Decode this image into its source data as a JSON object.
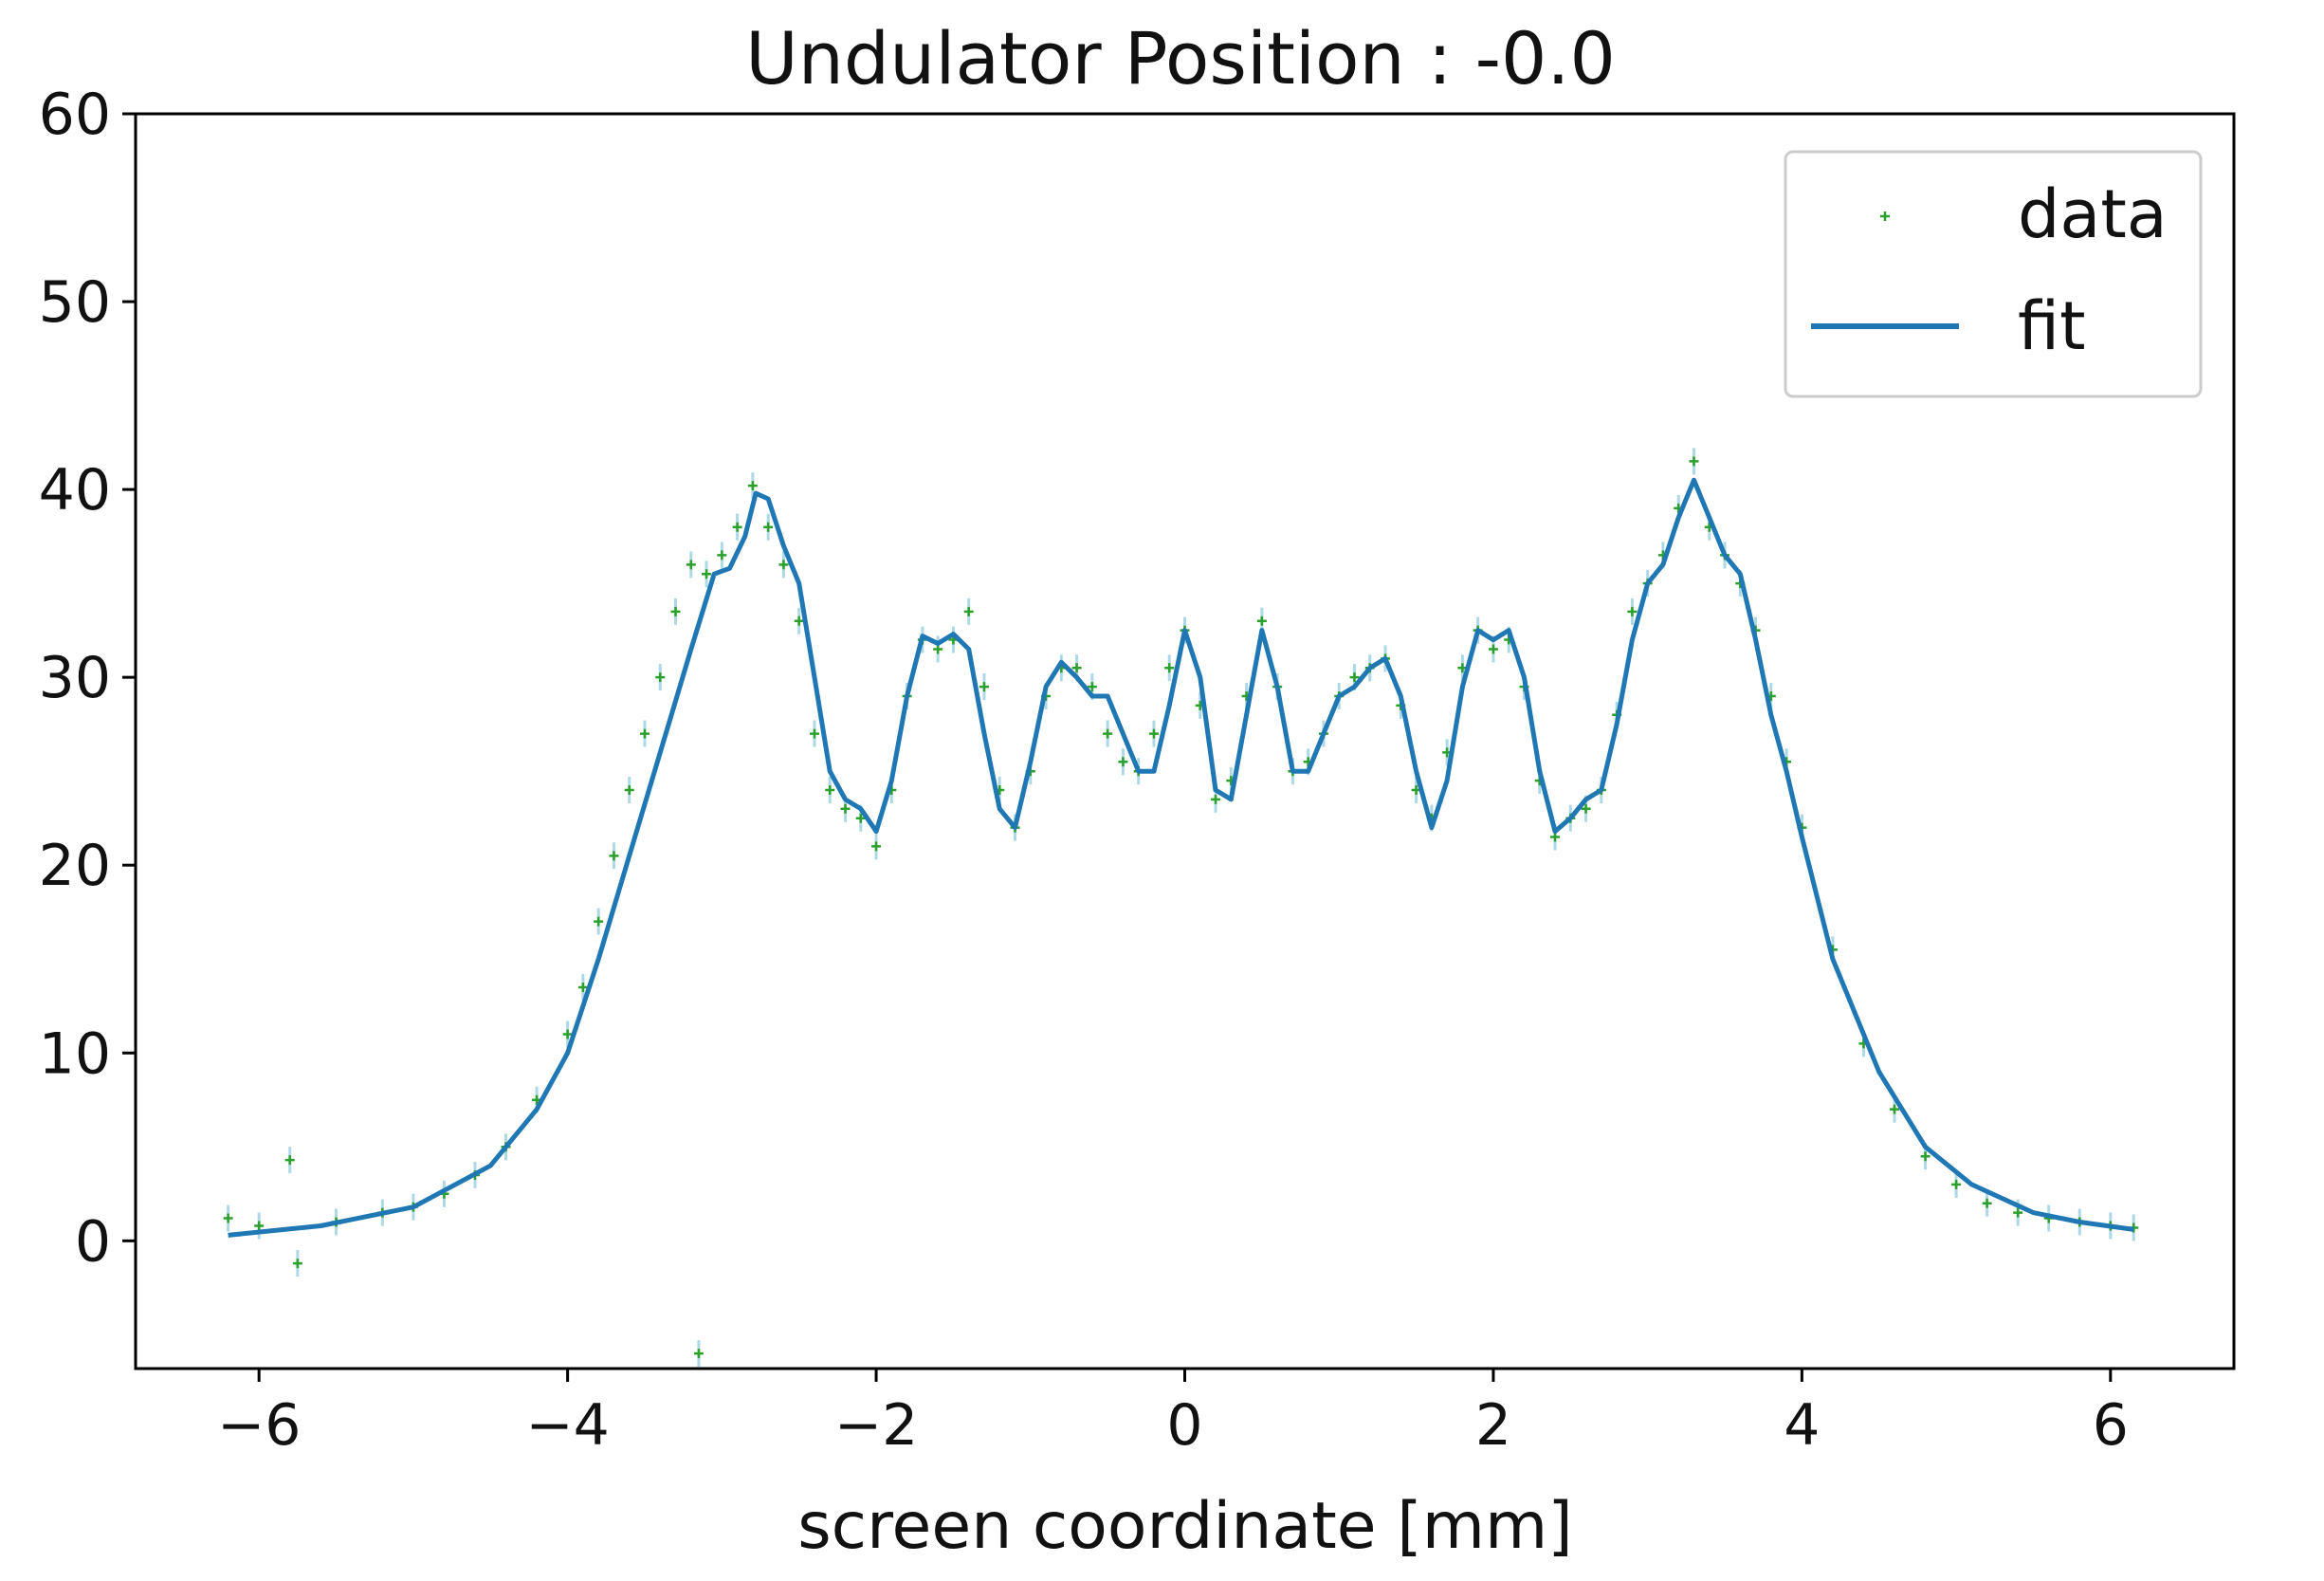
{
  "chart_data": {
    "type": "scatter",
    "title": "Undulator Position : -0.0",
    "xlabel": "screen coordinate [mm]",
    "ylabel": "",
    "xlim": [
      -6.8,
      6.8
    ],
    "ylim": [
      -6.8,
      60
    ],
    "xticks": [
      -6,
      -4,
      -2,
      0,
      2,
      4,
      6
    ],
    "xtick_labels": [
      "−6",
      "−4",
      "−2",
      "0",
      "2",
      "4",
      "6"
    ],
    "yticks": [
      0,
      10,
      20,
      30,
      40,
      50,
      60
    ],
    "ytick_labels": [
      "0",
      "10",
      "20",
      "30",
      "40",
      "50",
      "60"
    ],
    "grid": false,
    "legend_position": "top-right",
    "colors": {
      "data": "#2ca02c",
      "fit": "#1f77b4",
      "errorbar": "#add8e6"
    },
    "series": [
      {
        "name": "data",
        "kind": "scatter",
        "marker": "+",
        "x": [
          -6.2,
          -6.0,
          -5.8,
          -5.75,
          -5.5,
          -5.2,
          -5.0,
          -4.8,
          -4.6,
          -4.4,
          -4.2,
          -4.0,
          -3.9,
          -3.8,
          -3.7,
          -3.6,
          -3.5,
          -3.4,
          -3.3,
          -3.2,
          -3.15,
          -3.1,
          -3.0,
          -2.9,
          -2.8,
          -2.7,
          -2.6,
          -2.5,
          -2.4,
          -2.3,
          -2.2,
          -2.1,
          -2.0,
          -1.9,
          -1.8,
          -1.7,
          -1.6,
          -1.5,
          -1.4,
          -1.3,
          -1.2,
          -1.1,
          -1.0,
          -0.9,
          -0.8,
          -0.7,
          -0.6,
          -0.5,
          -0.4,
          -0.3,
          -0.2,
          -0.1,
          0.0,
          0.1,
          0.2,
          0.3,
          0.4,
          0.5,
          0.6,
          0.7,
          0.8,
          0.9,
          1.0,
          1.1,
          1.2,
          1.3,
          1.4,
          1.5,
          1.6,
          1.7,
          1.8,
          1.9,
          2.0,
          2.1,
          2.2,
          2.3,
          2.4,
          2.5,
          2.6,
          2.7,
          2.8,
          2.9,
          3.0,
          3.1,
          3.2,
          3.3,
          3.4,
          3.5,
          3.6,
          3.7,
          3.8,
          3.9,
          4.0,
          4.2,
          4.4,
          4.6,
          4.8,
          5.0,
          5.2,
          5.4,
          5.6,
          5.8,
          6.0,
          6.15
        ],
        "y": [
          1.2,
          0.8,
          4.3,
          -1.2,
          1.0,
          1.5,
          1.8,
          2.5,
          3.5,
          5.0,
          7.5,
          11.0,
          13.5,
          17.0,
          20.5,
          24.0,
          27.0,
          30.0,
          33.5,
          36.0,
          -6.0,
          35.5,
          36.5,
          38.0,
          40.2,
          38.0,
          36.0,
          33.0,
          27.0,
          24.0,
          23.0,
          22.5,
          21.0,
          24.0,
          29.0,
          32.0,
          31.5,
          32.0,
          33.5,
          29.5,
          24.0,
          22.0,
          25.0,
          29.0,
          30.5,
          30.5,
          29.5,
          27.0,
          25.5,
          25.0,
          27.0,
          30.5,
          32.5,
          28.5,
          23.5,
          24.5,
          29.0,
          33.0,
          29.5,
          25.0,
          25.5,
          27.0,
          29.0,
          30.0,
          30.5,
          31.0,
          28.5,
          24.0,
          22.5,
          26.0,
          30.5,
          32.5,
          31.5,
          32.0,
          29.5,
          24.5,
          21.5,
          22.5,
          23.0,
          24.0,
          28.0,
          33.5,
          35.0,
          36.5,
          39.0,
          41.5,
          38.0,
          36.5,
          35.0,
          32.5,
          29.0,
          25.5,
          22.0,
          15.5,
          10.5,
          7.0,
          4.5,
          3.0,
          2.0,
          1.5,
          1.2,
          1.0,
          0.8,
          0.7
        ]
      },
      {
        "name": "fit",
        "kind": "line",
        "x": [
          -6.2,
          -5.6,
          -5.0,
          -4.5,
          -4.2,
          -4.0,
          -3.8,
          -3.6,
          -3.4,
          -3.2,
          -3.05,
          -2.95,
          -2.85,
          -2.78,
          -2.7,
          -2.6,
          -2.5,
          -2.4,
          -2.3,
          -2.2,
          -2.1,
          -2.0,
          -1.9,
          -1.8,
          -1.7,
          -1.6,
          -1.5,
          -1.4,
          -1.3,
          -1.2,
          -1.1,
          -1.0,
          -0.9,
          -0.8,
          -0.7,
          -0.6,
          -0.5,
          -0.4,
          -0.3,
          -0.2,
          -0.1,
          0.0,
          0.1,
          0.2,
          0.3,
          0.4,
          0.5,
          0.6,
          0.7,
          0.8,
          0.9,
          1.0,
          1.1,
          1.2,
          1.3,
          1.4,
          1.5,
          1.6,
          1.7,
          1.8,
          1.9,
          2.0,
          2.1,
          2.2,
          2.3,
          2.4,
          2.5,
          2.6,
          2.7,
          2.8,
          2.9,
          3.0,
          3.1,
          3.2,
          3.3,
          3.4,
          3.5,
          3.6,
          3.7,
          3.8,
          3.9,
          4.0,
          4.2,
          4.5,
          4.8,
          5.1,
          5.5,
          5.8,
          6.15
        ],
        "y": [
          0.3,
          0.8,
          1.8,
          4.0,
          7.0,
          10.0,
          15.0,
          20.5,
          26.0,
          31.5,
          35.5,
          35.8,
          37.5,
          39.8,
          39.5,
          37.0,
          35.0,
          30.0,
          25.0,
          23.5,
          23.0,
          21.8,
          24.5,
          29.0,
          32.2,
          31.8,
          32.3,
          31.5,
          27.0,
          23.0,
          22.0,
          25.5,
          29.5,
          30.8,
          30.0,
          29.0,
          29.0,
          27.0,
          25.0,
          25.0,
          28.5,
          32.5,
          30.0,
          24.0,
          23.5,
          28.0,
          32.5,
          29.5,
          25.0,
          25.0,
          27.0,
          29.0,
          29.5,
          30.5,
          31.0,
          29.0,
          25.0,
          22.0,
          24.5,
          29.5,
          32.5,
          32.0,
          32.5,
          30.0,
          25.0,
          21.8,
          22.5,
          23.5,
          24.0,
          27.5,
          32.0,
          35.0,
          36.0,
          38.5,
          40.5,
          38.5,
          36.5,
          35.5,
          32.0,
          28.0,
          25.0,
          21.5,
          15.0,
          9.0,
          5.0,
          3.0,
          1.5,
          1.0,
          0.6
        ]
      }
    ],
    "legend": [
      {
        "label": "data",
        "marker": "+"
      },
      {
        "label": "fit",
        "marker": "line"
      }
    ]
  }
}
